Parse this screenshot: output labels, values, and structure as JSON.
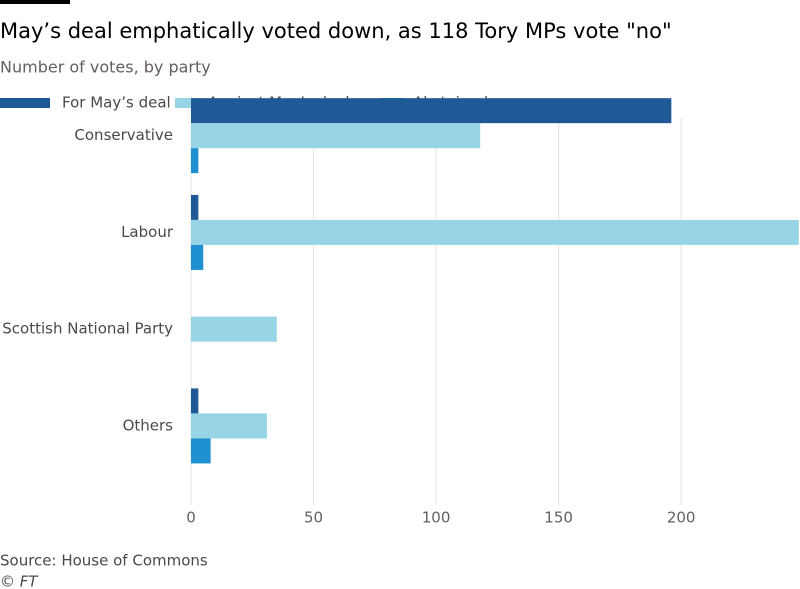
{
  "chart_data": {
    "type": "hbar",
    "title": "May’s deal emphatically voted down, as 118 Tory MPs vote \"no\"",
    "subtitle": "Number of votes, by party",
    "categories": [
      "Conservative",
      "Labour",
      "Scottish National Party",
      "Others"
    ],
    "series": [
      {
        "name": "For May’s deal",
        "color": "#1f5a96",
        "values": [
          196,
          3,
          0,
          3
        ]
      },
      {
        "name": "Against May’s deal",
        "color": "#96d4e6",
        "values": [
          118,
          248,
          35,
          31
        ]
      },
      {
        "name": "Abstained",
        "color": "#1e8fd1",
        "values": [
          3,
          5,
          0,
          8
        ]
      }
    ],
    "xlim": [
      0,
      248.5
    ],
    "xticks": [
      0,
      50,
      100,
      150,
      200
    ],
    "grid": true,
    "source": "Source: House of Commons",
    "credit": "© FT"
  }
}
